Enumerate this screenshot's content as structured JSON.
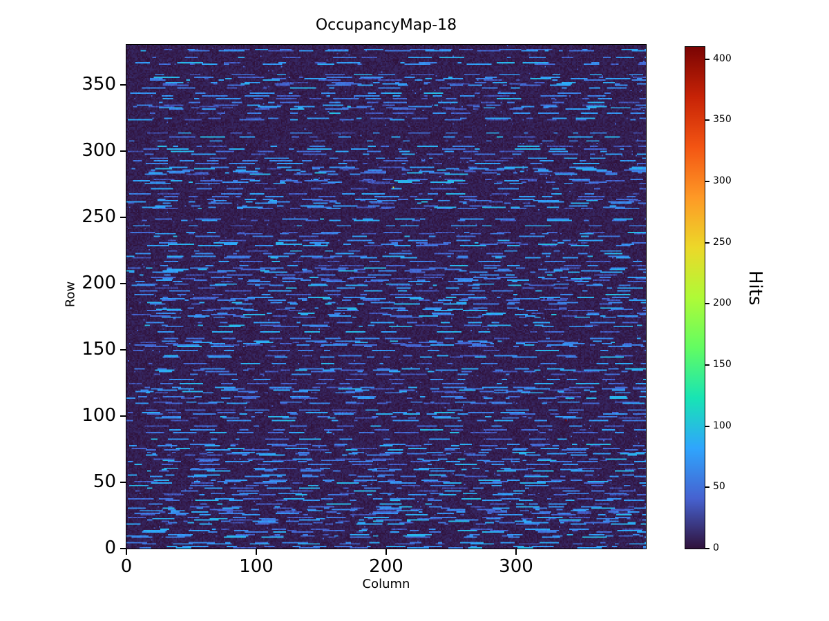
{
  "chart_data": {
    "type": "heatmap",
    "title": "OccupancyMap-18",
    "xlabel": "Column",
    "ylabel": "Row",
    "x_range": [
      0,
      400
    ],
    "y_range": [
      0,
      380
    ],
    "x_ticks": [
      0,
      100,
      200,
      300
    ],
    "y_ticks": [
      0,
      50,
      100,
      150,
      200,
      250,
      300,
      350
    ],
    "colorbar": {
      "label": "Hits",
      "ticks": [
        0,
        50,
        100,
        150,
        200,
        250,
        300,
        350,
        400
      ],
      "vmin": 0,
      "vmax": 410
    },
    "colormap": {
      "name": "turbo",
      "stops": [
        [
          0.0,
          48,
          18,
          59
        ],
        [
          0.1,
          70,
          98,
          208
        ],
        [
          0.2,
          47,
          165,
          253
        ],
        [
          0.3,
          24,
          228,
          180
        ],
        [
          0.4,
          98,
          252,
          98
        ],
        [
          0.5,
          175,
          250,
          55
        ],
        [
          0.6,
          236,
          216,
          41
        ],
        [
          0.7,
          254,
          153,
          38
        ],
        [
          0.8,
          243,
          85,
          19
        ],
        [
          0.9,
          199,
          35,
          6
        ],
        [
          1.0,
          122,
          4,
          3
        ]
      ]
    },
    "grid": {
      "cols": 400,
      "rows": 380
    },
    "pattern": {
      "description": "near-zero dark background with horizontal dashed streaks of moderate hit counts (approx 30-95 hits) on roughly half of the rows",
      "seed": 18,
      "background_max": 12,
      "sparse_pixel_probability": 0.004,
      "sparse_pixel_max": 55,
      "row_streak_probability": 0.52,
      "dash_min_len": 3,
      "dash_max_len": 20,
      "gap_min": 4,
      "gap_max": 34,
      "dash_value_min": 30,
      "dash_value_max": 95,
      "hot_pixels": [
        {
          "col": 205,
          "row": 272,
          "value": 240
        },
        {
          "col": 338,
          "row": 96,
          "value": 410
        }
      ]
    }
  }
}
